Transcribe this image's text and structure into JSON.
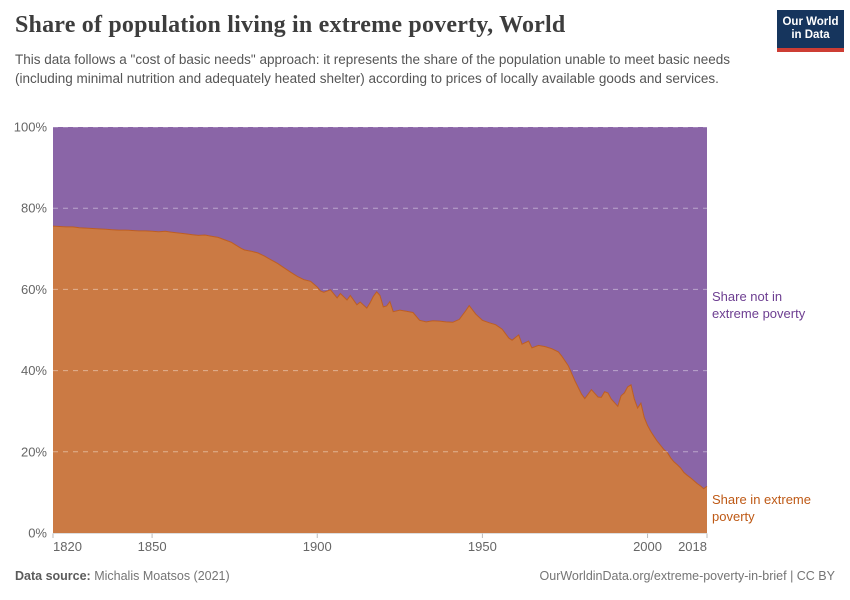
{
  "header": {
    "title": "Share of population living in extreme poverty, World",
    "subtitle": "This data follows a \"cost of basic needs\" approach: it represents the share of the population unable to meet basic needs (including minimal nutrition and adequately heated shelter) according to prices of locally available goods and services.",
    "logo": {
      "line1": "Our World",
      "line2": "in Data",
      "bg_color": "#16355d",
      "bar_color": "#cd3d34"
    }
  },
  "chart_data": {
    "type": "area",
    "stacked": true,
    "title": "Share of population living in extreme poverty, World",
    "xlabel": "",
    "ylabel": "",
    "x_domain": [
      1820,
      2018
    ],
    "y_domain": [
      0,
      100
    ],
    "grid": "dashed horizontal lines every 20%, drawn over the areas",
    "legend_position": "right-edge entity labels",
    "x_tick_years": [
      1820,
      1850,
      1900,
      1950,
      2000,
      2018
    ],
    "x_tick_labels": [
      "1820",
      "1850",
      "1900",
      "1950",
      "2000",
      "2018"
    ],
    "y_tick_values": [
      0,
      20,
      40,
      60,
      80,
      100
    ],
    "y_tick_labels": [
      "0%",
      "20%",
      "40%",
      "60%",
      "80%",
      "100%"
    ],
    "series": [
      {
        "name": "Share in extreme poverty",
        "text_color": "#be5915",
        "fill_color": "rgba(190,89,21,0.8)",
        "points": [
          [
            1820,
            75.6
          ],
          [
            1822,
            75.5
          ],
          [
            1824,
            75.4
          ],
          [
            1826,
            75.4
          ],
          [
            1828,
            75.2
          ],
          [
            1830,
            75.1
          ],
          [
            1832,
            75.0
          ],
          [
            1834,
            74.9
          ],
          [
            1836,
            74.8
          ],
          [
            1838,
            74.7
          ],
          [
            1840,
            74.6
          ],
          [
            1842,
            74.6
          ],
          [
            1844,
            74.5
          ],
          [
            1846,
            74.4
          ],
          [
            1848,
            74.4
          ],
          [
            1850,
            74.3
          ],
          [
            1852,
            74.2
          ],
          [
            1854,
            74.3
          ],
          [
            1856,
            74.1
          ],
          [
            1858,
            73.9
          ],
          [
            1860,
            73.7
          ],
          [
            1862,
            73.5
          ],
          [
            1864,
            73.3
          ],
          [
            1866,
            73.4
          ],
          [
            1868,
            73.1
          ],
          [
            1870,
            72.8
          ],
          [
            1872,
            72.2
          ],
          [
            1874,
            71.6
          ],
          [
            1876,
            70.6
          ],
          [
            1877,
            70.1
          ],
          [
            1878,
            69.7
          ],
          [
            1880,
            69.4
          ],
          [
            1882,
            69.0
          ],
          [
            1884,
            68.2
          ],
          [
            1886,
            67.3
          ],
          [
            1888,
            66.4
          ],
          [
            1890,
            65.3
          ],
          [
            1892,
            64.2
          ],
          [
            1894,
            63.2
          ],
          [
            1896,
            62.4
          ],
          [
            1898,
            62.0
          ],
          [
            1900,
            60.6
          ],
          [
            1901,
            59.6
          ],
          [
            1902,
            59.3
          ],
          [
            1904,
            59.9
          ],
          [
            1906,
            57.9
          ],
          [
            1907,
            59.0
          ],
          [
            1909,
            57.4
          ],
          [
            1910,
            58.5
          ],
          [
            1912,
            56.2
          ],
          [
            1913,
            56.9
          ],
          [
            1915,
            55.4
          ],
          [
            1916,
            56.7
          ],
          [
            1917,
            58.3
          ],
          [
            1918,
            59.4
          ],
          [
            1919,
            58.5
          ],
          [
            1920,
            55.7
          ],
          [
            1921,
            55.9
          ],
          [
            1922,
            57.0
          ],
          [
            1923,
            54.5
          ],
          [
            1925,
            54.9
          ],
          [
            1927,
            54.6
          ],
          [
            1929,
            54.3
          ],
          [
            1931,
            52.4
          ],
          [
            1933,
            52.0
          ],
          [
            1935,
            52.3
          ],
          [
            1937,
            52.2
          ],
          [
            1939,
            52.0
          ],
          [
            1941,
            51.9
          ],
          [
            1943,
            52.6
          ],
          [
            1945,
            54.8
          ],
          [
            1946,
            56.0
          ],
          [
            1948,
            53.9
          ],
          [
            1950,
            52.4
          ],
          [
            1952,
            51.8
          ],
          [
            1954,
            51.3
          ],
          [
            1956,
            50.2
          ],
          [
            1958,
            48.0
          ],
          [
            1959,
            47.5
          ],
          [
            1961,
            48.8
          ],
          [
            1962,
            46.5
          ],
          [
            1964,
            47.3
          ],
          [
            1965,
            45.6
          ],
          [
            1967,
            46.2
          ],
          [
            1969,
            45.9
          ],
          [
            1971,
            45.4
          ],
          [
            1973,
            44.6
          ],
          [
            1974,
            43.6
          ],
          [
            1976,
            41.2
          ],
          [
            1978,
            37.5
          ],
          [
            1980,
            34.2
          ],
          [
            1981,
            33.1
          ],
          [
            1983,
            35.3
          ],
          [
            1984,
            34.4
          ],
          [
            1985,
            33.5
          ],
          [
            1986,
            33.4
          ],
          [
            1987,
            34.8
          ],
          [
            1988,
            34.5
          ],
          [
            1989,
            33.0
          ],
          [
            1991,
            31.2
          ],
          [
            1992,
            33.8
          ],
          [
            1993,
            34.5
          ],
          [
            1994,
            36.0
          ],
          [
            1995,
            36.5
          ],
          [
            1996,
            33.0
          ],
          [
            1997,
            30.8
          ],
          [
            1998,
            32.0
          ],
          [
            1999,
            28.5
          ],
          [
            2000,
            26.5
          ],
          [
            2001,
            25.0
          ],
          [
            2002,
            23.7
          ],
          [
            2003,
            22.5
          ],
          [
            2004,
            21.5
          ],
          [
            2005,
            20.5
          ],
          [
            2006,
            19.8
          ],
          [
            2007,
            18.5
          ],
          [
            2008,
            17.5
          ],
          [
            2009,
            16.8
          ],
          [
            2010,
            16.0
          ],
          [
            2011,
            14.9
          ],
          [
            2012,
            14.2
          ],
          [
            2013,
            13.6
          ],
          [
            2014,
            12.9
          ],
          [
            2015,
            12.2
          ],
          [
            2016,
            11.6
          ],
          [
            2017,
            10.9
          ],
          [
            2018,
            11.5
          ]
        ]
      },
      {
        "name": "Share not in extreme poverty",
        "text_color": "#6d3e91",
        "fill_color": "rgba(109,62,145,0.8)",
        "derived": "stacked complement: 100 minus share in extreme poverty"
      }
    ]
  },
  "footer": {
    "source_label": "Data source:",
    "source_value": " Michalis Moatsos (2021)",
    "credit": "OurWorldinData.org/extreme-poverty-in-brief | CC BY"
  }
}
